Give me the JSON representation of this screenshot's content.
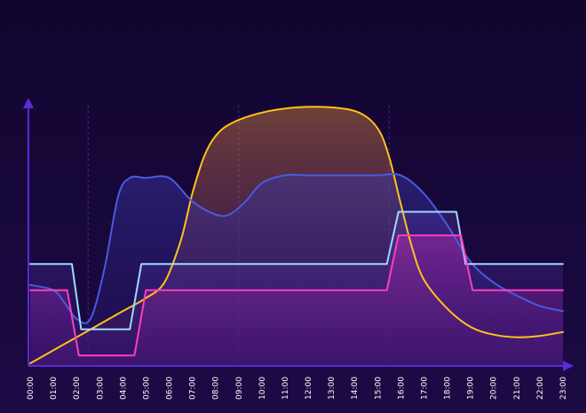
{
  "chart_data": {
    "type": "line",
    "title": "",
    "xlabel": "",
    "ylabel": "",
    "x_ticks": [
      "00:00",
      "01:00",
      "02:00",
      "03:00",
      "04:00",
      "05:00",
      "06:00",
      "07:00",
      "08:00",
      "09:00",
      "10:00",
      "11:00",
      "12:00",
      "13:00",
      "14:00",
      "15:00",
      "16:00",
      "17:00",
      "18:00",
      "19:00",
      "20:00",
      "21:00",
      "22:00",
      "23:00"
    ],
    "xlim": [
      0,
      23
    ],
    "ylim": [
      0,
      100
    ],
    "grid": "dashed vertical lines at 02:30, 09:00, 15:30",
    "guide_lines_x": [
      2.5,
      9,
      15.5
    ],
    "series": [
      {
        "color": "#ffc21c",
        "style": "smooth",
        "fill": true,
        "points": [
          [
            0,
            1
          ],
          [
            1,
            6
          ],
          [
            2,
            11
          ],
          [
            3,
            16
          ],
          [
            4,
            21
          ],
          [
            5,
            26
          ],
          [
            5.8,
            32
          ],
          [
            6.5,
            48
          ],
          [
            7,
            66
          ],
          [
            7.5,
            80
          ],
          [
            8,
            88
          ],
          [
            8.7,
            93
          ],
          [
            10,
            97
          ],
          [
            11.5,
            99
          ],
          [
            13,
            99
          ],
          [
            14.2,
            97
          ],
          [
            15,
            91
          ],
          [
            15.5,
            80
          ],
          [
            16,
            62
          ],
          [
            16.5,
            45
          ],
          [
            17,
            33
          ],
          [
            18,
            22
          ],
          [
            19,
            15
          ],
          [
            20,
            12
          ],
          [
            21,
            11
          ],
          [
            22,
            11.5
          ],
          [
            23,
            13
          ]
        ]
      },
      {
        "color": "#4a5ae0",
        "style": "smooth",
        "fill": true,
        "points": [
          [
            0,
            31
          ],
          [
            1,
            29
          ],
          [
            1.5,
            24
          ],
          [
            2,
            18
          ],
          [
            2.6,
            18
          ],
          [
            3.2,
            37
          ],
          [
            3.8,
            65
          ],
          [
            4.3,
            72
          ],
          [
            5,
            72
          ],
          [
            6,
            72
          ],
          [
            7,
            63
          ],
          [
            8,
            58
          ],
          [
            8.6,
            58
          ],
          [
            9.3,
            63
          ],
          [
            10,
            70
          ],
          [
            11,
            73
          ],
          [
            12,
            73
          ],
          [
            13,
            73
          ],
          [
            14,
            73
          ],
          [
            15,
            73
          ],
          [
            16,
            73
          ],
          [
            17,
            66
          ],
          [
            18,
            54
          ],
          [
            19,
            40
          ],
          [
            20,
            32
          ],
          [
            21,
            27
          ],
          [
            22,
            23
          ],
          [
            23,
            21
          ]
        ]
      },
      {
        "color": "#a0d8ff",
        "style": "step",
        "fill": true,
        "points": [
          [
            0,
            39
          ],
          [
            1.8,
            39
          ],
          [
            2.2,
            14
          ],
          [
            4.3,
            14
          ],
          [
            4.8,
            39
          ],
          [
            15.4,
            39
          ],
          [
            15.9,
            59
          ],
          [
            18.4,
            59
          ],
          [
            18.8,
            39
          ],
          [
            23,
            39
          ]
        ]
      },
      {
        "color": "#ff3dbd",
        "style": "step",
        "fill": true,
        "points": [
          [
            0,
            29
          ],
          [
            1.6,
            29
          ],
          [
            2.1,
            4
          ],
          [
            4.5,
            4
          ],
          [
            5,
            29
          ],
          [
            15.4,
            29
          ],
          [
            15.9,
            50
          ],
          [
            18.6,
            50
          ],
          [
            19.1,
            29
          ],
          [
            23,
            29
          ]
        ]
      }
    ]
  },
  "colors": {
    "background": "#140636",
    "axis": "#5a2ad6"
  }
}
